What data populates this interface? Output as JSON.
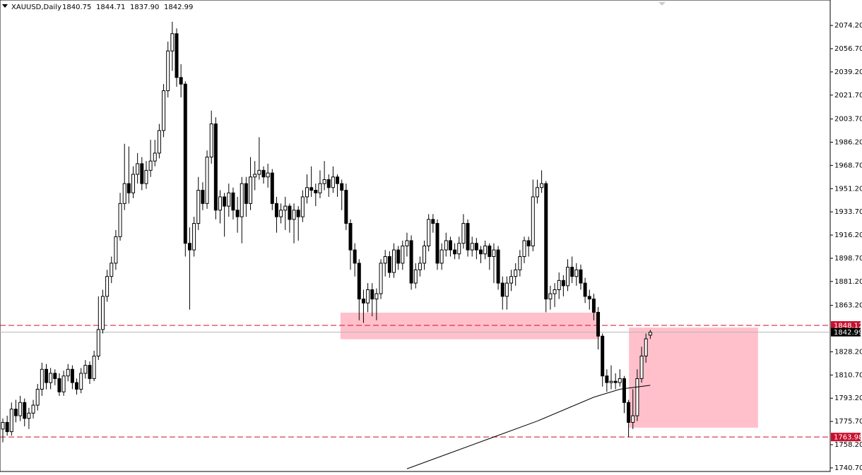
{
  "chart_data": {
    "type": "candlestick",
    "title": "XAUUSD,Daily",
    "header_values": [
      "1840.75",
      "1844.71",
      "1837.90",
      "1842.99"
    ],
    "ylim": [
      1738,
      2093.4
    ],
    "yticks": [
      {
        "value": 2074.2,
        "label": "2074.20"
      },
      {
        "value": 2056.7,
        "label": "2056.70"
      },
      {
        "value": 2039.2,
        "label": "2039.20"
      },
      {
        "value": 2021.7,
        "label": "2021.70"
      },
      {
        "value": 2003.7,
        "label": "2003.70"
      },
      {
        "value": 1986.2,
        "label": "1986.20"
      },
      {
        "value": 1968.7,
        "label": "1968.70"
      },
      {
        "value": 1951.2,
        "label": "1951.20"
      },
      {
        "value": 1933.7,
        "label": "1933.70"
      },
      {
        "value": 1916.2,
        "label": "1916.20"
      },
      {
        "value": 1898.7,
        "label": "1898.70"
      },
      {
        "value": 1881.2,
        "label": "1881.20"
      },
      {
        "value": 1863.2,
        "label": "1863.20"
      },
      {
        "value": 1828.2,
        "label": "1828.20"
      },
      {
        "value": 1810.7,
        "label": "1810.70"
      },
      {
        "value": 1793.2,
        "label": "1793.20"
      },
      {
        "value": 1775.7,
        "label": "1775.70"
      },
      {
        "value": 1758.2,
        "label": "1758.20"
      },
      {
        "value": 1740.7,
        "label": "1740.70"
      }
    ],
    "price_lines": [
      {
        "value": 1848.12,
        "color": "#c8102e",
        "style": "dashed"
      },
      {
        "value": 1763.98,
        "color": "#c8102e",
        "style": "dashed"
      },
      {
        "value": 1842.99,
        "color": "#000000",
        "style": "current"
      }
    ],
    "zones": [
      {
        "x0": 77.7,
        "x1": 137.2,
        "top": 1857.7,
        "bottom": 1837.7,
        "color": "#ffc0cb"
      },
      {
        "x0": 144.1,
        "x1": 173.8,
        "top": 1846.5,
        "bottom": 1771,
        "color": "#ffc0cb"
      }
    ],
    "ma": {
      "x": [
        93,
        113,
        123,
        136,
        142,
        149
      ],
      "values": [
        1740,
        1764,
        1776,
        1794,
        1800,
        1803
      ]
    },
    "ohlc": [
      [
        1770,
        1778,
        1760,
        1775
      ],
      [
        1775,
        1780,
        1765,
        1768
      ],
      [
        1768,
        1790,
        1765,
        1785
      ],
      [
        1785,
        1792,
        1775,
        1780
      ],
      [
        1780,
        1795,
        1776,
        1790
      ],
      [
        1790,
        1793,
        1772,
        1778
      ],
      [
        1778,
        1786,
        1770,
        1782
      ],
      [
        1782,
        1792,
        1778,
        1788
      ],
      [
        1788,
        1804,
        1784,
        1800
      ],
      [
        1800,
        1820,
        1795,
        1815
      ],
      [
        1815,
        1819,
        1800,
        1805
      ],
      [
        1805,
        1816,
        1800,
        1812
      ],
      [
        1812,
        1815,
        1803,
        1808
      ],
      [
        1808,
        1812,
        1795,
        1798
      ],
      [
        1798,
        1814,
        1795,
        1810
      ],
      [
        1810,
        1819,
        1806,
        1815
      ],
      [
        1815,
        1818,
        1800,
        1805
      ],
      [
        1805,
        1808,
        1796,
        1800
      ],
      [
        1800,
        1816,
        1797,
        1812
      ],
      [
        1812,
        1822,
        1808,
        1818
      ],
      [
        1818,
        1821,
        1804,
        1808
      ],
      [
        1808,
        1829,
        1806,
        1825
      ],
      [
        1825,
        1870,
        1822,
        1845
      ],
      [
        1845,
        1875,
        1842,
        1870
      ],
      [
        1870,
        1890,
        1866,
        1885
      ],
      [
        1885,
        1900,
        1880,
        1895
      ],
      [
        1895,
        1920,
        1890,
        1915
      ],
      [
        1915,
        1948,
        1912,
        1940
      ],
      [
        1940,
        1985,
        1935,
        1955
      ],
      [
        1955,
        1983,
        1940,
        1948
      ],
      [
        1948,
        1968,
        1944,
        1962
      ],
      [
        1962,
        1978,
        1955,
        1970
      ],
      [
        1970,
        1975,
        1950,
        1955
      ],
      [
        1955,
        1972,
        1951,
        1965
      ],
      [
        1965,
        1988,
        1960,
        1972
      ],
      [
        1972,
        1988,
        1968,
        1978
      ],
      [
        1978,
        2000,
        1974,
        1995
      ],
      [
        1995,
        2030,
        1990,
        2025
      ],
      [
        2025,
        2062,
        2020,
        2055
      ],
      [
        2055,
        2077,
        2040,
        2068
      ],
      [
        2068,
        2072,
        2028,
        2035
      ],
      [
        2035,
        2045,
        2020,
        2030
      ],
      [
        2030,
        2032,
        1900,
        1910
      ],
      [
        1910,
        1922,
        1860,
        1905
      ],
      [
        1905,
        1930,
        1900,
        1925
      ],
      [
        1925,
        1960,
        1920,
        1950
      ],
      [
        1950,
        1956,
        1935,
        1940
      ],
      [
        1940,
        1980,
        1936,
        1975
      ],
      [
        1975,
        2010,
        1970,
        2000
      ],
      [
        2000,
        2005,
        1928,
        1935
      ],
      [
        1935,
        1950,
        1925,
        1945
      ],
      [
        1945,
        1948,
        1915,
        1938
      ],
      [
        1938,
        1955,
        1930,
        1948
      ],
      [
        1948,
        1952,
        1928,
        1935
      ],
      [
        1935,
        1945,
        1918,
        1930
      ],
      [
        1930,
        1960,
        1910,
        1955
      ],
      [
        1955,
        1960,
        1930,
        1940
      ],
      [
        1940,
        1975,
        1935,
        1960
      ],
      [
        1960,
        1972,
        1950,
        1962
      ],
      [
        1962,
        1990,
        1958,
        1965
      ],
      [
        1965,
        1968,
        1955,
        1960
      ],
      [
        1960,
        1970,
        1952,
        1963
      ],
      [
        1963,
        1966,
        1935,
        1940
      ],
      [
        1940,
        1945,
        1918,
        1930
      ],
      [
        1930,
        1940,
        1925,
        1935
      ],
      [
        1935,
        1945,
        1920,
        1938
      ],
      [
        1938,
        1940,
        1918,
        1928
      ],
      [
        1928,
        1940,
        1910,
        1935
      ],
      [
        1935,
        1938,
        1912,
        1930
      ],
      [
        1930,
        1950,
        1926,
        1945
      ],
      [
        1945,
        1962,
        1940,
        1952
      ],
      [
        1952,
        1968,
        1945,
        1950
      ],
      [
        1950,
        1955,
        1938,
        1948
      ],
      [
        1948,
        1965,
        1944,
        1955
      ],
      [
        1955,
        1972,
        1950,
        1958
      ],
      [
        1958,
        1962,
        1945,
        1952
      ],
      [
        1952,
        1968,
        1948,
        1960
      ],
      [
        1960,
        1962,
        1945,
        1955
      ],
      [
        1955,
        1958,
        1935,
        1950
      ],
      [
        1950,
        1955,
        1920,
        1925
      ],
      [
        1925,
        1928,
        1890,
        1905
      ],
      [
        1905,
        1910,
        1885,
        1895
      ],
      [
        1895,
        1898,
        1852,
        1868
      ],
      [
        1868,
        1875,
        1850,
        1865
      ],
      [
        1865,
        1880,
        1858,
        1875
      ],
      [
        1875,
        1880,
        1855,
        1868
      ],
      [
        1868,
        1876,
        1852,
        1872
      ],
      [
        1872,
        1898,
        1868,
        1895
      ],
      [
        1895,
        1905,
        1885,
        1900
      ],
      [
        1900,
        1904,
        1884,
        1888
      ],
      [
        1888,
        1910,
        1884,
        1905
      ],
      [
        1905,
        1908,
        1890,
        1895
      ],
      [
        1895,
        1912,
        1890,
        1908
      ],
      [
        1908,
        1918,
        1900,
        1912
      ],
      [
        1912,
        1916,
        1875,
        1880
      ],
      [
        1880,
        1895,
        1876,
        1890
      ],
      [
        1890,
        1900,
        1885,
        1895
      ],
      [
        1895,
        1912,
        1890,
        1908
      ],
      [
        1908,
        1932,
        1904,
        1928
      ],
      [
        1928,
        1932,
        1918,
        1925
      ],
      [
        1925,
        1928,
        1890,
        1895
      ],
      [
        1895,
        1910,
        1890,
        1905
      ],
      [
        1905,
        1918,
        1900,
        1912
      ],
      [
        1912,
        1915,
        1900,
        1905
      ],
      [
        1905,
        1910,
        1898,
        1902
      ],
      [
        1902,
        1915,
        1898,
        1910
      ],
      [
        1910,
        1932,
        1906,
        1925
      ],
      [
        1925,
        1928,
        1900,
        1905
      ],
      [
        1905,
        1915,
        1900,
        1910
      ],
      [
        1910,
        1914,
        1898,
        1905
      ],
      [
        1905,
        1908,
        1895,
        1902
      ],
      [
        1902,
        1912,
        1898,
        1908
      ],
      [
        1908,
        1910,
        1890,
        1900
      ],
      [
        1900,
        1910,
        1880,
        1905
      ],
      [
        1905,
        1908,
        1875,
        1880
      ],
      [
        1880,
        1885,
        1860,
        1870
      ],
      [
        1870,
        1885,
        1860,
        1880
      ],
      [
        1880,
        1890,
        1874,
        1885
      ],
      [
        1885,
        1895,
        1878,
        1890
      ],
      [
        1890,
        1905,
        1885,
        1900
      ],
      [
        1900,
        1915,
        1895,
        1912
      ],
      [
        1912,
        1915,
        1900,
        1908
      ],
      [
        1908,
        1958,
        1904,
        1945
      ],
      [
        1945,
        1958,
        1940,
        1952
      ],
      [
        1952,
        1965,
        1948,
        1955
      ],
      [
        1955,
        1957,
        1858,
        1868
      ],
      [
        1868,
        1878,
        1860,
        1872
      ],
      [
        1872,
        1880,
        1862,
        1875
      ],
      [
        1875,
        1888,
        1868,
        1882
      ],
      [
        1882,
        1886,
        1870,
        1878
      ],
      [
        1878,
        1898,
        1874,
        1892
      ],
      [
        1892,
        1900,
        1880,
        1885
      ],
      [
        1885,
        1895,
        1878,
        1890
      ],
      [
        1890,
        1894,
        1875,
        1880
      ],
      [
        1880,
        1884,
        1865,
        1870
      ],
      [
        1870,
        1875,
        1860,
        1868
      ],
      [
        1868,
        1872,
        1852,
        1858
      ],
      [
        1858,
        1862,
        1830,
        1840
      ],
      [
        1840,
        1842,
        1802,
        1810
      ],
      [
        1810,
        1815,
        1798,
        1805
      ],
      [
        1805,
        1818,
        1800,
        1806
      ],
      [
        1806,
        1812,
        1800,
        1805
      ],
      [
        1805,
        1815,
        1802,
        1808
      ],
      [
        1808,
        1810,
        1782,
        1790
      ],
      [
        1790,
        1792,
        1764,
        1775
      ],
      [
        1775,
        1800,
        1770,
        1780
      ],
      [
        1780,
        1815,
        1776,
        1808
      ],
      [
        1808,
        1832,
        1805,
        1825
      ],
      [
        1825,
        1842,
        1820,
        1838
      ],
      [
        1840.75,
        1844.71,
        1837.9,
        1842.99
      ]
    ]
  }
}
